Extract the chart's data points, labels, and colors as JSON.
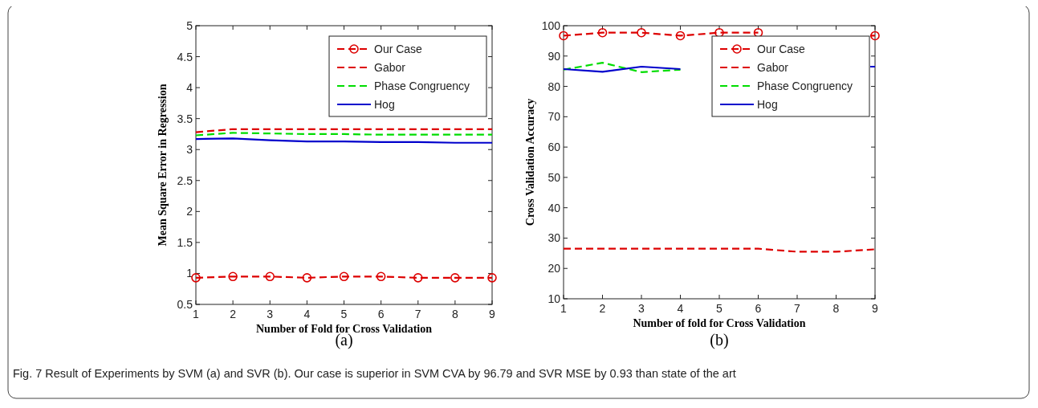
{
  "chart_data": [
    {
      "type": "line",
      "xlabel": "Number of Fold for Cross Validation",
      "ylabel": "Mean Square Error in Regression",
      "x": [
        1,
        2,
        3,
        4,
        5,
        6,
        7,
        8,
        9
      ],
      "xlim": [
        1,
        9
      ],
      "xticks": [
        1,
        2,
        3,
        4,
        5,
        6,
        7,
        8,
        9
      ],
      "ylim": [
        0.5,
        5
      ],
      "yticks": [
        0.5,
        1,
        1.5,
        2,
        2.5,
        3,
        3.5,
        4,
        4.5,
        5
      ],
      "grid": false,
      "legend": "top right",
      "annotations": [
        "(a)",
        "Fig. 7 Result of Experiments by SVM (a) and SVR (b). Our case is superior in SVM CVA by 96.79 and SVR MSE by 0.93 than state of the art"
      ],
      "series": [
        {
          "name": "Our Case",
          "color": "#dd0000",
          "marker": "circle",
          "line_style": "dashed",
          "values": [
            0.93,
            0.95,
            0.95,
            0.93,
            0.95,
            0.95,
            0.93,
            0.93,
            0.93
          ]
        },
        {
          "name": "Gabor",
          "color": "#dd0000",
          "marker": "none",
          "line_style": "dashed",
          "values": [
            3.28,
            3.33,
            3.33,
            3.33,
            3.33,
            3.33,
            3.33,
            3.33,
            3.33
          ]
        },
        {
          "name": "Phase Congruency",
          "color": "#00dd00",
          "marker": "none",
          "line_style": "dashed",
          "values": [
            3.23,
            3.27,
            3.26,
            3.25,
            3.25,
            3.24,
            3.24,
            3.24,
            3.24
          ]
        },
        {
          "name": "Hog",
          "color": "#0000cc",
          "marker": "none",
          "line_style": "solid",
          "values": [
            3.17,
            3.18,
            3.15,
            3.13,
            3.13,
            3.12,
            3.12,
            3.11,
            3.11
          ]
        }
      ]
    },
    {
      "type": "line",
      "xlabel": "Number of fold for Cross Validation",
      "ylabel": "Cross Validation Accuracy",
      "x": [
        1,
        2,
        3,
        4,
        5,
        6,
        7,
        8,
        9
      ],
      "xlim": [
        1,
        9
      ],
      "xticks": [
        1,
        2,
        3,
        4,
        5,
        6,
        7,
        8,
        9
      ],
      "ylim": [
        10,
        100
      ],
      "yticks": [
        10,
        20,
        30,
        40,
        50,
        60,
        70,
        80,
        90,
        100
      ],
      "grid": false,
      "legend": "top right",
      "annotations": [
        "(b)"
      ],
      "series": [
        {
          "name": "Our Case",
          "color": "#dd0000",
          "marker": "circle",
          "line_style": "dashed",
          "values": [
            96.7,
            97.7,
            97.7,
            96.7,
            97.7,
            97.7,
            null,
            null,
            96.7
          ]
        },
        {
          "name": "Gabor",
          "color": "#dd0000",
          "marker": "none",
          "line_style": "dashed",
          "values": [
            26.5,
            26.5,
            26.5,
            26.5,
            26.5,
            26.5,
            25.5,
            25.5,
            26.3
          ]
        },
        {
          "name": "Phase Congruency",
          "color": "#00dd00",
          "marker": "none",
          "line_style": "dashed",
          "values": [
            85.5,
            87.8,
            84.7,
            85.5,
            null,
            null,
            null,
            null,
            null
          ]
        },
        {
          "name": "Hog",
          "color": "#0000cc",
          "marker": "none",
          "line_style": "solid",
          "values": [
            85.7,
            84.8,
            86.5,
            85.7,
            null,
            null,
            null,
            null,
            86.5
          ]
        }
      ]
    }
  ]
}
